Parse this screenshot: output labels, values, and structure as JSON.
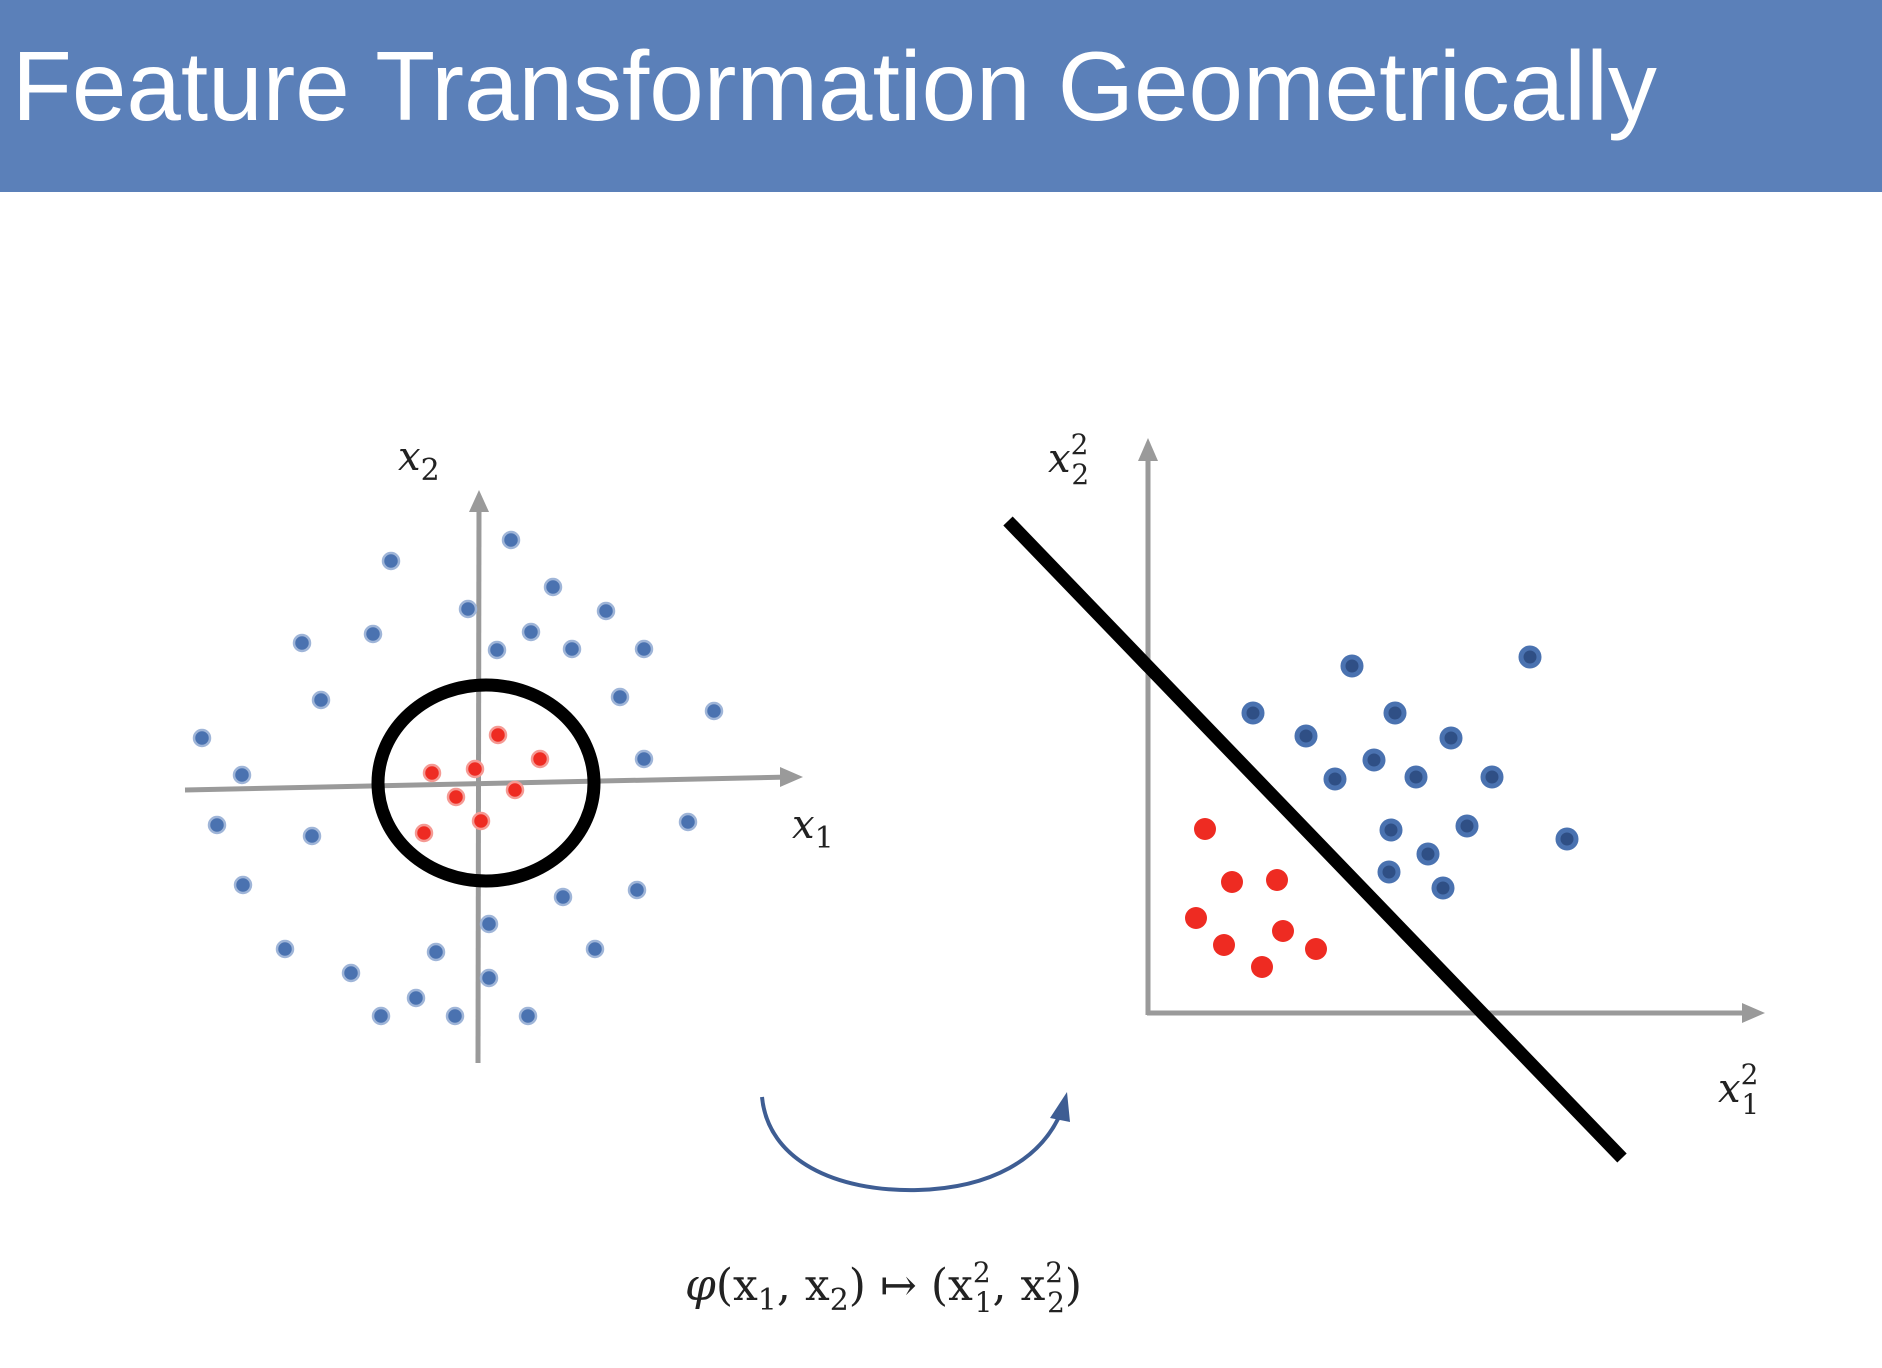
{
  "title": "Feature Transformation Geometrically",
  "colors": {
    "title_bg": "#5b80b9",
    "blue_point": "#4a72b0",
    "blue_point_dark": "#3b5f95",
    "red_point": "#ee2b22",
    "axis": "#9a9a9a",
    "boundary": "#000000",
    "arrow": "#3e5d93"
  },
  "left_plot": {
    "x_label": {
      "var": "x",
      "sub": "1"
    },
    "y_label": {
      "var": "x",
      "sub": "2"
    },
    "decision_boundary": "circle"
  },
  "right_plot": {
    "x_label": {
      "var": "x",
      "sup": "2",
      "sub": "1"
    },
    "y_label": {
      "var": "x",
      "sup": "2",
      "sub": "2"
    },
    "decision_boundary": "line"
  },
  "mapping_formula": {
    "phi": "φ",
    "args": "(x",
    "sub1": "1",
    "comma": ", x",
    "sub2": "2",
    "close": ")",
    "mapsto": "↦",
    "rhs_open": "(x",
    "sup_a": "2",
    "sub_a": "1",
    "rhs_comma": ", x",
    "sup_b": "2",
    "sub_b": "2",
    "rhs_close": ")"
  }
}
